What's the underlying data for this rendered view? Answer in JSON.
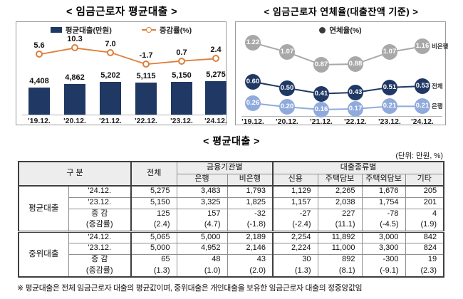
{
  "charts": {
    "avg_loan": {
      "title": "< 임금근로자 평균대출 >",
      "legend_bar": "평균대출(만원)",
      "legend_line": "증감률(%)"
    },
    "delinquency": {
      "title": "< 임금근로자 연체율(대출잔액 기준) >",
      "legend": "연체율(%)"
    }
  },
  "chart_data": [
    {
      "type": "bar",
      "title": "임금근로자 평균대출",
      "categories": [
        "'19.12.",
        "'20.12.",
        "'21.12.",
        "'22.12.",
        "'23.12.",
        "'24.12."
      ],
      "series": [
        {
          "name": "평균대출(만원)",
          "type": "bar",
          "color": "#1f3864",
          "values": [
            4408,
            4862,
            5202,
            5115,
            5150,
            5275
          ],
          "labels": [
            "4,408",
            "4,862",
            "5,202",
            "5,115",
            "5,150",
            "5,275"
          ]
        },
        {
          "name": "증감률(%)",
          "type": "line",
          "color": "#dd7e3b",
          "values": [
            5.6,
            10.3,
            7.0,
            -1.7,
            0.7,
            2.4
          ],
          "labels": [
            "5.6",
            "10.3",
            "7.0",
            "-1.7",
            "0.7",
            "2.4"
          ]
        }
      ],
      "ylabel": "만원 / %",
      "grid": false,
      "legend_position": "top"
    },
    {
      "type": "line",
      "title": "임금근로자 연체율(대출잔액 기준)",
      "categories": [
        "'19.12.",
        "'20.12.",
        "'21.12.",
        "'22.12.",
        "'23.12.",
        "'24.12."
      ],
      "series": [
        {
          "name": "비은행",
          "color": "#a8a8a8",
          "values": [
            1.22,
            1.07,
            0.87,
            0.88,
            1.07,
            1.16
          ],
          "labels": [
            "1.22",
            "1.07",
            "0.87",
            "0.88",
            "1.07",
            "1.16"
          ]
        },
        {
          "name": "전체",
          "color": "#1f3864",
          "values": [
            0.6,
            0.5,
            0.41,
            0.43,
            0.51,
            0.53
          ],
          "labels": [
            "0.60",
            "0.50",
            "0.41",
            "0.43",
            "0.51",
            "0.53"
          ]
        },
        {
          "name": "은행",
          "color": "#8faadc",
          "values": [
            0.26,
            0.2,
            0.16,
            0.17,
            0.21,
            0.21
          ],
          "labels": [
            "0.26",
            "0.20",
            "0.16",
            "0.17",
            "0.21",
            "0.21"
          ]
        }
      ],
      "ylabel": "%",
      "grid": false,
      "legend_position": "top"
    }
  ],
  "table": {
    "title": "< 평균대출 >",
    "unit_note": "(단위: 만원, %)",
    "headers": {
      "gubun": "구 분",
      "total": "전체",
      "by_institution": "금융기관별",
      "bank": "은행",
      "nonbank": "비은행",
      "by_type": "대출종류별",
      "credit": "신용",
      "home_collateral": "주택담보",
      "other_collateral": "주택외담보",
      "etc": "기타"
    },
    "sections": [
      {
        "label": "평균대출",
        "rows": [
          {
            "label": "'24.12.",
            "values": [
              "5,275",
              "3,483",
              "1,793",
              "1,129",
              "2,265",
              "1,676",
              "205"
            ]
          },
          {
            "label": "'23.12.",
            "values": [
              "5,150",
              "3,325",
              "1,825",
              "1,157",
              "2,038",
              "1,754",
              "201"
            ]
          },
          {
            "label": "증 감",
            "values": [
              "125",
              "157",
              "-32",
              "-27",
              "227",
              "-78",
              "4"
            ]
          },
          {
            "label": "(증감률)",
            "values": [
              "(2.4)",
              "(4.7)",
              "(-1.8)",
              "(-2.4)",
              "(11.1)",
              "(-4.5)",
              "(1.9)"
            ]
          }
        ]
      },
      {
        "label": "중위대출",
        "rows": [
          {
            "label": "'24.12.",
            "values": [
              "5,065",
              "5,000",
              "2,189",
              "2,254",
              "11,892",
              "3,000",
              "842"
            ]
          },
          {
            "label": "'23.12.",
            "values": [
              "5,000",
              "4,952",
              "2,146",
              "2,224",
              "11,000",
              "3,300",
              "824"
            ]
          },
          {
            "label": "증 감",
            "values": [
              "65",
              "48",
              "43",
              "30",
              "892",
              "-300",
              "19"
            ]
          },
          {
            "label": "(증감률)",
            "values": [
              "(1.3)",
              "(1.0)",
              "(2.0)",
              "(1.3)",
              "(8.1)",
              "(-9.1)",
              "(2.3)"
            ]
          }
        ]
      }
    ]
  },
  "footnote": "※ 평균대출은 전체 임금근로자 대출의 평균값이며, 중위대출은 개인대출을 보유한 임금근로자 대출의 정중앙값임"
}
